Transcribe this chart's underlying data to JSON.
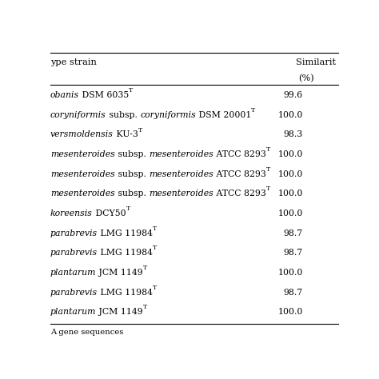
{
  "header_col1": "ype strain",
  "header_col2_line1": "Similarit",
  "header_col2_line2": "(%)",
  "rows": [
    {
      "parts": [
        [
          "obanis",
          true
        ],
        [
          " DSM 6035",
          false
        ],
        [
          "T",
          false
        ]
      ],
      "super": [
        false,
        false,
        true
      ],
      "similarity": "99.6"
    },
    {
      "parts": [
        [
          "coryniformis",
          true
        ],
        [
          " subsp. ",
          false
        ],
        [
          "coryniformis",
          true
        ],
        [
          " DSM 20001",
          false
        ],
        [
          "T",
          false
        ]
      ],
      "super": [
        false,
        false,
        false,
        false,
        true
      ],
      "similarity": "100.0"
    },
    {
      "parts": [
        [
          "versmoldensis",
          true
        ],
        [
          " KU-3",
          false
        ],
        [
          "T",
          false
        ]
      ],
      "super": [
        false,
        false,
        true
      ],
      "similarity": "98.3"
    },
    {
      "parts": [
        [
          "mesenteroides",
          true
        ],
        [
          " subsp. ",
          false
        ],
        [
          "mesenteroides",
          true
        ],
        [
          " ATCC 8293",
          false
        ],
        [
          "T",
          false
        ]
      ],
      "super": [
        false,
        false,
        false,
        false,
        true
      ],
      "similarity": "100.0"
    },
    {
      "parts": [
        [
          "mesenteroides",
          true
        ],
        [
          " subsp. ",
          false
        ],
        [
          "mesenteroides",
          true
        ],
        [
          " ATCC 8293",
          false
        ],
        [
          "T",
          false
        ]
      ],
      "super": [
        false,
        false,
        false,
        false,
        true
      ],
      "similarity": "100.0"
    },
    {
      "parts": [
        [
          "mesenteroides",
          true
        ],
        [
          " subsp. ",
          false
        ],
        [
          "mesenteroides",
          true
        ],
        [
          " ATCC 8293",
          false
        ],
        [
          "T",
          false
        ]
      ],
      "super": [
        false,
        false,
        false,
        false,
        true
      ],
      "similarity": "100.0"
    },
    {
      "parts": [
        [
          "koreensis",
          true
        ],
        [
          " DCY50",
          false
        ],
        [
          "T",
          false
        ]
      ],
      "super": [
        false,
        false,
        true
      ],
      "similarity": "100.0"
    },
    {
      "parts": [
        [
          "parabrevis",
          true
        ],
        [
          " LMG 11984",
          false
        ],
        [
          "T",
          false
        ]
      ],
      "super": [
        false,
        false,
        true
      ],
      "similarity": "98.7"
    },
    {
      "parts": [
        [
          "parabrevis",
          true
        ],
        [
          " LMG 11984",
          false
        ],
        [
          "T",
          false
        ]
      ],
      "super": [
        false,
        false,
        true
      ],
      "similarity": "98.7"
    },
    {
      "parts": [
        [
          "plantarum",
          true
        ],
        [
          " JCM 1149",
          false
        ],
        [
          "T",
          false
        ]
      ],
      "super": [
        false,
        false,
        true
      ],
      "similarity": "100.0"
    },
    {
      "parts": [
        [
          "parabrevis",
          true
        ],
        [
          " LMG 11984",
          false
        ],
        [
          "T",
          false
        ]
      ],
      "super": [
        false,
        false,
        true
      ],
      "similarity": "98.7"
    },
    {
      "parts": [
        [
          "plantarum",
          true
        ],
        [
          " JCM 1149",
          false
        ],
        [
          "T",
          false
        ]
      ],
      "super": [
        false,
        false,
        true
      ],
      "similarity": "100.0"
    }
  ],
  "footer": "A gene sequences",
  "bg_color": "#ffffff",
  "text_color": "#000000",
  "line_color": "#000000",
  "font_size": 7.8,
  "header_font_size": 8.2,
  "footer_font_size": 7.2
}
